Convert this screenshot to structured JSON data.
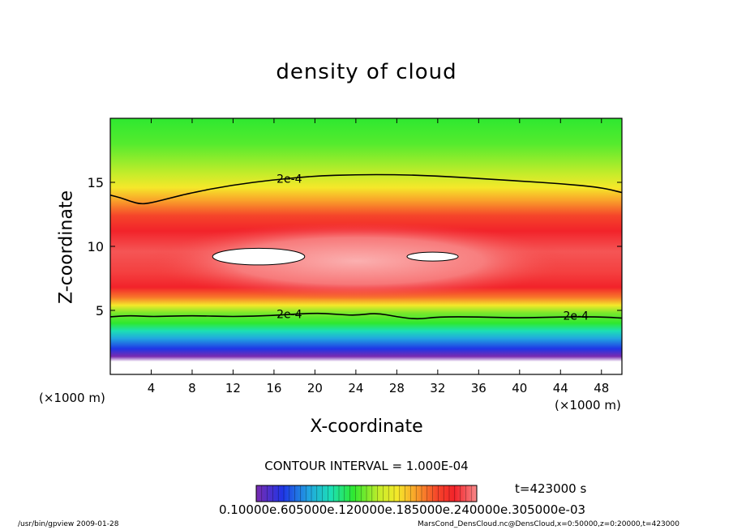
{
  "chart_data": {
    "type": "heatmap",
    "title": "density of cloud",
    "xlabel": "X-coordinate",
    "ylabel": "Z-coordinate",
    "x_unit_label_left": "(×1000 m)",
    "x_unit_label_right": "(×1000 m)",
    "xlim": [
      0,
      50
    ],
    "ylim": [
      0,
      20
    ],
    "x_ticks": [
      4,
      8,
      12,
      16,
      20,
      24,
      28,
      32,
      36,
      40,
      44,
      48
    ],
    "y_ticks": [
      5,
      10,
      15
    ],
    "contour_interval_text": "CONTOUR INTERVAL = 1.000E-04",
    "time_text": "t=423000 s",
    "colorbar_label_text": "0.10000e.605000e.120000e.185000e.240000e.305000e-03",
    "contour_labels": [
      {
        "text": "2e-4",
        "x": 17.5,
        "y": 15.3
      },
      {
        "text": "2e-4",
        "x": 17.5,
        "y": 4.7
      },
      {
        "text": "2e-4",
        "x": 45.5,
        "y": 4.6
      }
    ],
    "upper_contour": {
      "value": "2e-4",
      "x": [
        0,
        1,
        2,
        3,
        4,
        6,
        8,
        12,
        16,
        20,
        24,
        28,
        32,
        36,
        40,
        44,
        48,
        50
      ],
      "y": [
        14.0,
        13.8,
        13.5,
        13.3,
        13.4,
        13.8,
        14.2,
        14.8,
        15.2,
        15.5,
        15.6,
        15.6,
        15.5,
        15.3,
        15.1,
        14.9,
        14.6,
        14.2
      ]
    },
    "lower_contour": {
      "value": "2e-4",
      "x": [
        0,
        2,
        4,
        8,
        12,
        16,
        20,
        22,
        24,
        26,
        28,
        30,
        32,
        36,
        40,
        44,
        48,
        50
      ],
      "y": [
        4.5,
        4.6,
        4.5,
        4.6,
        4.5,
        4.6,
        4.8,
        4.7,
        4.6,
        4.8,
        4.5,
        4.3,
        4.5,
        4.5,
        4.4,
        4.5,
        4.5,
        4.4
      ]
    },
    "max_regions": [
      {
        "x_center": 14.5,
        "z_center": 9.2,
        "x_half_width": 4.5,
        "z_half_height": 0.65
      },
      {
        "x_center": 31.5,
        "z_center": 9.2,
        "x_half_width": 2.5,
        "z_half_height": 0.35
      }
    ],
    "colorscale": [
      "#7a2bb0",
      "#1f35e6",
      "#21a6e0",
      "#1ce0b4",
      "#2ee830",
      "#a6ee2a",
      "#f5e82a",
      "#f9a32a",
      "#f5452a",
      "#f2232a",
      "#f78a8a",
      "#ffffff"
    ]
  },
  "footer": {
    "left": "/usr/bin/gpview   2009-01-28",
    "right": "MarsCond_DensCloud.nc@DensCloud,x=0:50000,z=0:20000,t=423000"
  }
}
